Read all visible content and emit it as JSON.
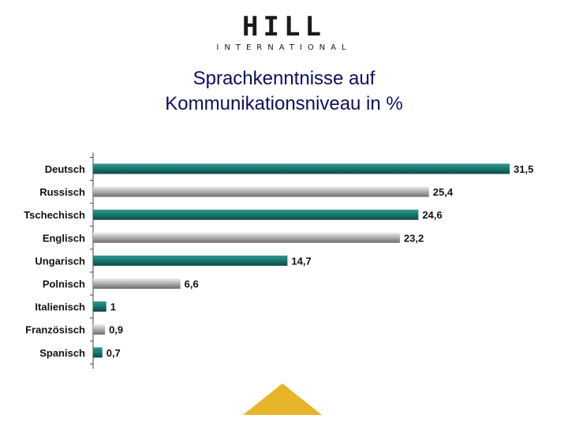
{
  "logo": {
    "main": "HILL",
    "sub": "INTERNATIONAL"
  },
  "chart_data": {
    "type": "bar",
    "orientation": "horizontal",
    "title": "Sprachkenntnisse auf Kommunikationsniveau in %",
    "title_lines": [
      "Sprachkenntnisse auf",
      "Kommunikationsniveau in %"
    ],
    "categories": [
      "Deutsch",
      "Russisch",
      "Tschechisch",
      "Englisch",
      "Ungarisch",
      "Polnisch",
      "Italienisch",
      "Französisch",
      "Spanisch"
    ],
    "values": [
      31.5,
      25.4,
      24.6,
      23.2,
      14.7,
      6.6,
      1,
      0.9,
      0.7
    ],
    "value_labels": [
      "31,5",
      "25,4",
      "24,6",
      "23,2",
      "14,7",
      "6,6",
      "1",
      "0,9",
      "0,7"
    ],
    "bar_colors": [
      "#1a7a72",
      "#a9a9a9",
      "#1a7a72",
      "#a9a9a9",
      "#1a7a72",
      "#a9a9a9",
      "#1a7a72",
      "#a9a9a9",
      "#1a7a72"
    ],
    "xlim": [
      0,
      31.5
    ],
    "grid": false,
    "legend": "none"
  },
  "colors": {
    "title": "#0d0f5e",
    "teal": "#1a7a72",
    "gray": "#a9a9a9",
    "accent_triangle": "#e8b429"
  }
}
